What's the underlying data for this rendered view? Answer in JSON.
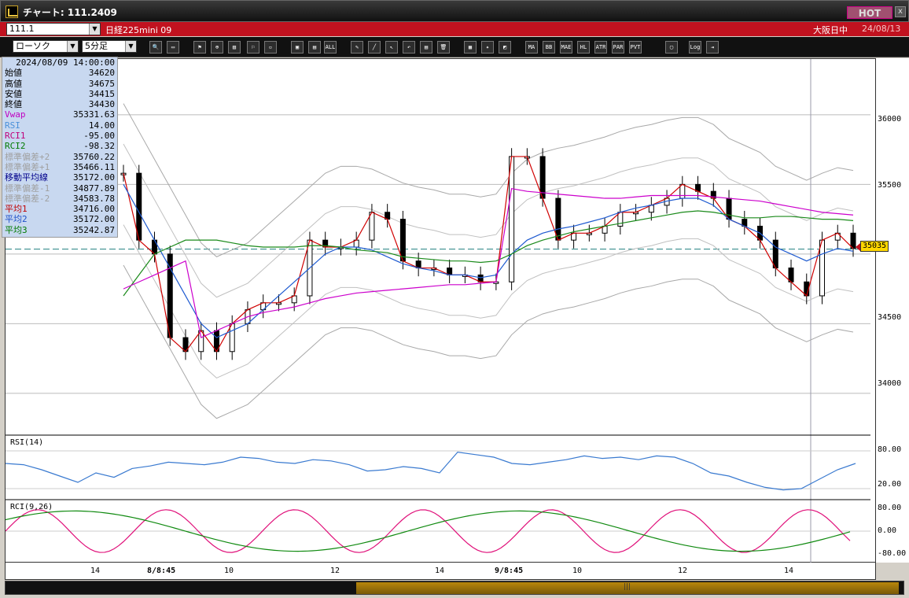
{
  "window": {
    "title": "チャート: 111.2409",
    "hot_label": "HOT"
  },
  "instrument": {
    "code": "111.1",
    "name": "日経225mini 09",
    "market": "大阪日中",
    "date": "24/08/13"
  },
  "chart_options": {
    "chart_type": "ローソク",
    "interval": "5分足"
  },
  "toolbar": {
    "buttons": [
      "search",
      "window",
      "candle",
      "zoom",
      "chart",
      "flag",
      "disabled",
      "bar1",
      "bar2",
      "ALL",
      "pen",
      "line",
      "cursor",
      "undo",
      "memo",
      "trash",
      "grid",
      "tool",
      "color",
      "MA",
      "BB",
      "MAE",
      "HL",
      "ATR",
      "PAR",
      "PVT",
      "box",
      "Log",
      "exit"
    ]
  },
  "info_panel": {
    "datetime": "2024/08/09  14:00:00",
    "rows": [
      {
        "label": "始値",
        "value": "34620",
        "color": "#000000"
      },
      {
        "label": "高値",
        "value": "34675",
        "color": "#000000"
      },
      {
        "label": "安値",
        "value": "34415",
        "color": "#000000"
      },
      {
        "label": "終値",
        "value": "34430",
        "color": "#000000"
      },
      {
        "label": "Vwap",
        "value": "35331.63",
        "color": "#c000c0"
      },
      {
        "label": "RSI",
        "value": "14.00",
        "color": "#4a90d9"
      },
      {
        "label": "RCI1",
        "value": "-95.00",
        "color": "#c0007a"
      },
      {
        "label": "RCI2",
        "value": "-98.32",
        "color": "#007a00"
      },
      {
        "label": "標準偏差+2",
        "value": "35760.22",
        "color": "#a0a0a0"
      },
      {
        "label": "標準偏差+1",
        "value": "35466.11",
        "color": "#a0a0a0"
      },
      {
        "label": "移動平均線",
        "value": "35172.00",
        "color": "#00008b"
      },
      {
        "label": "標準偏差-1",
        "value": "34877.89",
        "color": "#a0a0a0"
      },
      {
        "label": "標準偏差-2",
        "value": "34583.78",
        "color": "#a0a0a0"
      },
      {
        "label": "平均1",
        "value": "34716.00",
        "color": "#c00000"
      },
      {
        "label": "平均2",
        "value": "35172.00",
        "color": "#1e50c8"
      },
      {
        "label": "平均3",
        "value": "35242.87",
        "color": "#007a00"
      }
    ]
  },
  "price_axis": {
    "labels": [
      "36000",
      "35500",
      "35000",
      "34500",
      "34000"
    ],
    "current_price": "35035"
  },
  "rsi_panel": {
    "label": "RSI(14)",
    "axis_labels": [
      "80.00",
      "20.00"
    ]
  },
  "rci_panel": {
    "label": "RCI(9,26)",
    "axis_labels": [
      "80.00",
      "0.00",
      "-80.00"
    ]
  },
  "time_axis": {
    "labels": [
      {
        "text": "14",
        "bold": false
      },
      {
        "text": "8/8:45",
        "bold": true
      },
      {
        "text": "10",
        "bold": false
      },
      {
        "text": "12",
        "bold": false
      },
      {
        "text": "14",
        "bold": false
      },
      {
        "text": "9/8:45",
        "bold": true
      },
      {
        "text": "10",
        "bold": false
      },
      {
        "text": "12",
        "bold": false
      },
      {
        "text": "14",
        "bold": false
      }
    ]
  },
  "colors": {
    "bg": "#ffffff",
    "title_bar": "#c1121f",
    "price_tag": "#ffd700"
  },
  "chart_data": {
    "type": "line",
    "title": "",
    "xlabel": "",
    "ylabel": "",
    "ylim": [
      33700,
      36400
    ],
    "grid": true,
    "series": [
      {
        "name": "平均1",
        "values": [
          35580,
          35100,
          35000,
          34400,
          34300,
          34450,
          34300,
          34500,
          34600,
          34650,
          34650,
          34700,
          35100,
          35050,
          35050,
          35100,
          35300,
          35250,
          34950,
          34900,
          34900,
          34850,
          34850,
          34800,
          34800,
          35700,
          35700,
          35400,
          35100,
          35150,
          35150,
          35200,
          35300,
          35300,
          35350,
          35400,
          35500,
          35450,
          35400,
          35250,
          35200,
          35100,
          34900,
          34800,
          34700,
          35100,
          35150,
          35040
        ]
      },
      {
        "name": "平均2",
        "values": [
          35500,
          35300,
          35100,
          34900,
          34700,
          34500,
          34400,
          34450,
          34500,
          34600,
          34700,
          34800,
          34900,
          35000,
          35050,
          35050,
          35030,
          34980,
          34930,
          34900,
          34880,
          34850,
          34850,
          34830,
          34850,
          35000,
          35100,
          35150,
          35180,
          35200,
          35230,
          35260,
          35300,
          35330,
          35350,
          35380,
          35400,
          35400,
          35350,
          35250,
          35200,
          35150,
          35050,
          35000,
          34950,
          35000,
          35040,
          35020
        ]
      },
      {
        "name": "平均3",
        "values": [
          34700,
          34850,
          35000,
          35050,
          35100,
          35100,
          35100,
          35080,
          35060,
          35050,
          35050,
          35050,
          35060,
          35060,
          35050,
          35030,
          35020,
          35010,
          34980,
          34970,
          34960,
          34950,
          34950,
          34940,
          34950,
          35000,
          35060,
          35100,
          35130,
          35160,
          35180,
          35200,
          35220,
          35240,
          35260,
          35280,
          35300,
          35310,
          35300,
          35280,
          35260,
          35260,
          35270,
          35270,
          35260,
          35250,
          35250,
          35240
        ]
      },
      {
        "name": "Vwap",
        "values": [
          34750,
          34800,
          34850,
          34900,
          34950,
          34400,
          34450,
          34500,
          34550,
          34580,
          34600,
          34620,
          34650,
          34680,
          34700,
          34720,
          34730,
          34740,
          34750,
          34760,
          34770,
          34780,
          34780,
          34790,
          34800,
          35470,
          35450,
          35440,
          35430,
          35420,
          35410,
          35400,
          35400,
          35410,
          35420,
          35420,
          35420,
          35420,
          35410,
          35400,
          35390,
          35380,
          35360,
          35340,
          35320,
          35300,
          35290,
          35280
        ]
      }
    ],
    "rsi": [
      60,
      58,
      50,
      40,
      30,
      45,
      38,
      52,
      56,
      62,
      60,
      58,
      62,
      70,
      68,
      62,
      60,
      66,
      64,
      58,
      48,
      50,
      55,
      52,
      45,
      78,
      74,
      70,
      60,
      58,
      62,
      66,
      72,
      68,
      70,
      66,
      72,
      70,
      60,
      45,
      40,
      30,
      22,
      18,
      20,
      35,
      50,
      60
    ]
  }
}
